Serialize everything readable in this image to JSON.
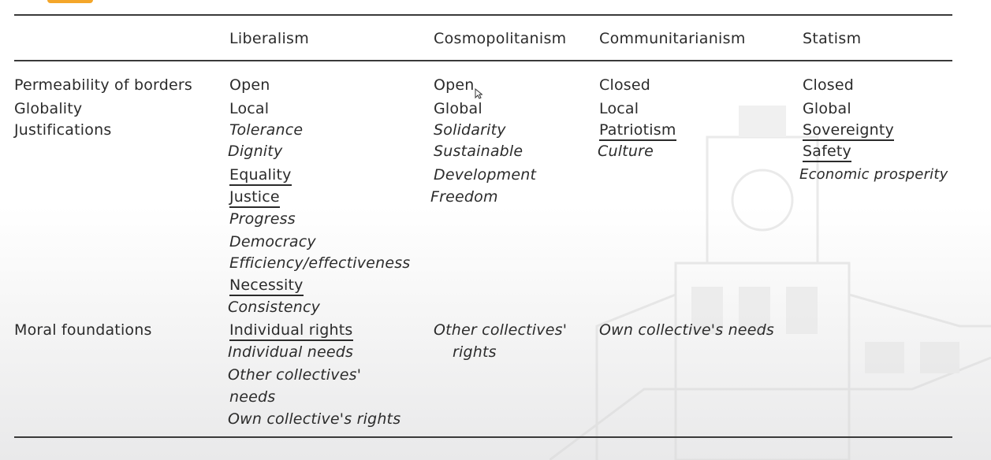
{
  "table": {
    "headers": [
      "Liberalism",
      "Cosmopolitanism",
      "Communitarianism",
      "Statism"
    ],
    "rows": {
      "permeability": {
        "label": "Permeability of borders",
        "values": [
          "Open",
          "Open",
          "Closed",
          "Closed"
        ]
      },
      "globality": {
        "label": "Globality",
        "values": [
          "Local",
          "Global",
          "Local",
          "Global"
        ]
      },
      "justifications": {
        "label": "Justifications",
        "liberalism": [
          "Tolerance",
          "Dignity",
          "Equality",
          "Justice",
          "Progress",
          "Democracy",
          "Efficiency/effectiveness",
          "Necessity",
          "Consistency"
        ],
        "cosmopolitanism": [
          "Solidarity",
          "Sustainable",
          "Development",
          "Freedom"
        ],
        "communitarianism": [
          "Patriotism",
          "Culture"
        ],
        "statism": [
          "Sovereignty",
          "Safety",
          "Economic prosperity"
        ]
      },
      "moral": {
        "label": "Moral foundations",
        "liberalism": [
          "Individual rights",
          "Individual needs",
          "Other collectives'",
          "needs",
          "Own collective's rights"
        ],
        "cosmopolitanism": [
          "Other collectives'",
          "rights"
        ],
        "communitarianism": [
          "Own collective's needs"
        ]
      }
    }
  }
}
